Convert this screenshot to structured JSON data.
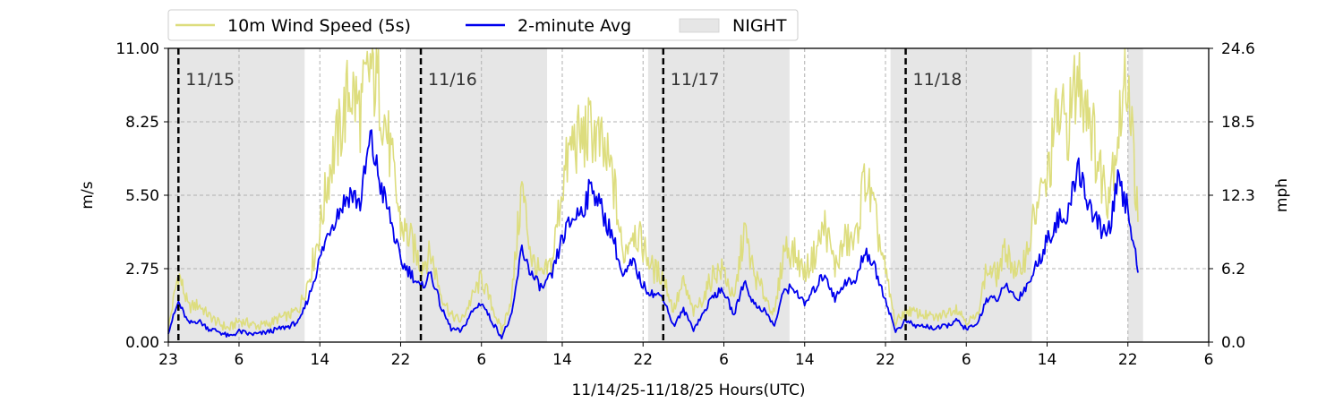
{
  "chart_data": {
    "type": "line",
    "xlabel": "11/14/25-11/18/25  Hours(UTC)",
    "ylabel_left": "m/s",
    "ylabel_right": "mph",
    "x_range_hours": [
      0,
      103
    ],
    "ylim": [
      0,
      11
    ],
    "y_ticks_left": [
      "0.00",
      "2.75",
      "5.50",
      "8.25",
      "11.00"
    ],
    "y_ticks_right": [
      "0.0",
      "6.2",
      "12.3",
      "18.5",
      "24.6"
    ],
    "x_tick_hours": [
      0,
      7,
      15,
      23,
      31,
      39,
      47,
      55,
      63,
      71,
      79,
      87,
      95,
      103
    ],
    "x_tick_labels": [
      "23",
      "6",
      "14",
      "22",
      "6",
      "14",
      "22",
      "6",
      "14",
      "22",
      "6",
      "14",
      "22",
      "6"
    ],
    "day_markers": [
      {
        "hour": 1,
        "label": "11/15"
      },
      {
        "hour": 25,
        "label": "11/16"
      },
      {
        "hour": 49,
        "label": "11/17"
      },
      {
        "hour": 73,
        "label": "11/18"
      }
    ],
    "night_periods": [
      [
        0,
        13.5
      ],
      [
        23.5,
        37.5
      ],
      [
        47.5,
        61.5
      ],
      [
        71.5,
        85.5
      ],
      [
        95,
        96.5
      ]
    ],
    "grid": true,
    "legend_placement": "top-left, outside plot",
    "legend": [
      "10m Wind Speed (5s)",
      "2-minute Avg",
      "NIGHT"
    ],
    "series": [
      {
        "name": "10m Wind Speed (5s)",
        "color": "#dddd7e",
        "x": [
          0,
          1,
          2,
          3,
          4,
          5,
          6,
          7,
          8,
          9,
          10,
          11,
          12,
          13,
          14,
          15,
          16,
          17,
          18,
          19,
          20,
          21,
          22,
          23,
          24,
          25,
          26,
          27,
          28,
          29,
          30,
          31,
          32,
          33,
          34,
          35,
          36,
          37,
          38,
          39,
          40,
          41,
          42,
          43,
          44,
          45,
          46,
          47,
          48,
          49,
          50,
          51,
          52,
          53,
          54,
          55,
          56,
          57,
          58,
          59,
          60,
          61,
          62,
          63,
          64,
          65,
          66,
          67,
          68,
          69,
          70,
          71,
          72,
          73,
          74,
          75,
          76,
          77,
          78,
          79,
          80,
          81,
          82,
          83,
          84,
          85,
          86,
          87,
          88,
          89,
          90,
          91,
          92,
          93,
          94,
          95,
          96
        ],
        "y": [
          0.5,
          2.6,
          1.3,
          1.4,
          1.0,
          0.7,
          0.5,
          0.8,
          0.7,
          0.6,
          0.7,
          0.9,
          1.0,
          1.3,
          2.5,
          4.2,
          6.6,
          7.9,
          9.6,
          8.6,
          10.3,
          9.3,
          7.0,
          4.4,
          3.8,
          2.9,
          3.3,
          1.8,
          1.0,
          0.8,
          1.6,
          2.4,
          1.4,
          0.4,
          1.7,
          5.8,
          3.1,
          2.4,
          3.0,
          5.9,
          7.5,
          7.6,
          8.0,
          7.1,
          6.2,
          3.2,
          4.3,
          3.6,
          2.7,
          2.5,
          1.2,
          2.2,
          1.1,
          1.7,
          2.6,
          2.7,
          1.5,
          4.2,
          2.5,
          1.8,
          1.0,
          3.6,
          3.3,
          2.6,
          3.3,
          4.4,
          2.8,
          3.8,
          3.7,
          6.3,
          4.6,
          2.6,
          0.7,
          1.2,
          1.1,
          1.0,
          0.9,
          1.1,
          1.3,
          0.8,
          0.9,
          2.7,
          2.5,
          3.5,
          2.4,
          3.4,
          5.1,
          6.0,
          8.5,
          8.1,
          9.8,
          9.2,
          6.7,
          5.6,
          7.8,
          10.3,
          4.5
        ]
      },
      {
        "name": "2-minute Avg",
        "color": "#0000ee",
        "x": [
          0,
          1,
          2,
          3,
          4,
          5,
          6,
          7,
          8,
          9,
          10,
          11,
          12,
          13,
          14,
          15,
          16,
          17,
          18,
          19,
          20,
          21,
          22,
          23,
          24,
          25,
          26,
          27,
          28,
          29,
          30,
          31,
          32,
          33,
          34,
          35,
          36,
          37,
          38,
          39,
          40,
          41,
          42,
          43,
          44,
          45,
          46,
          47,
          48,
          49,
          50,
          51,
          52,
          53,
          54,
          55,
          56,
          57,
          58,
          59,
          60,
          61,
          62,
          63,
          64,
          65,
          66,
          67,
          68,
          69,
          70,
          71,
          72,
          73,
          74,
          75,
          76,
          77,
          78,
          79,
          80,
          81,
          82,
          83,
          84,
          85,
          86,
          87,
          88,
          89,
          90,
          91,
          92,
          93,
          94,
          95,
          96
        ],
        "y": [
          0.4,
          1.5,
          0.7,
          0.8,
          0.5,
          0.4,
          0.2,
          0.4,
          0.3,
          0.3,
          0.4,
          0.5,
          0.6,
          0.8,
          1.8,
          3.1,
          4.3,
          5.0,
          5.6,
          5.2,
          7.6,
          5.9,
          4.6,
          3.0,
          2.6,
          2.0,
          2.6,
          1.3,
          0.5,
          0.4,
          1.1,
          1.5,
          0.8,
          0.2,
          1.0,
          3.5,
          2.5,
          2.0,
          2.5,
          3.9,
          4.6,
          5.0,
          5.9,
          4.8,
          4.0,
          2.4,
          3.0,
          2.1,
          1.8,
          1.7,
          0.6,
          1.2,
          0.5,
          1.1,
          1.8,
          1.9,
          1.0,
          2.3,
          1.4,
          1.2,
          0.6,
          2.0,
          2.0,
          1.4,
          2.0,
          2.6,
          1.6,
          2.3,
          2.2,
          3.5,
          2.7,
          1.6,
          0.4,
          0.8,
          0.6,
          0.6,
          0.5,
          0.6,
          0.8,
          0.5,
          0.6,
          1.6,
          1.6,
          2.1,
          1.6,
          2.1,
          2.9,
          3.8,
          4.6,
          4.5,
          6.7,
          5.3,
          4.4,
          4.0,
          5.9,
          5.0,
          2.6
        ]
      }
    ]
  }
}
